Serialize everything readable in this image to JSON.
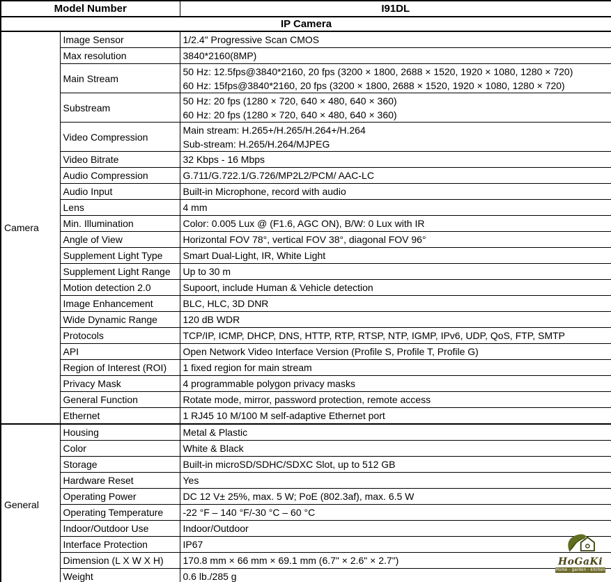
{
  "header": {
    "model_label": "Model Number",
    "model_value": "I91DL",
    "category": "IP Camera"
  },
  "sections": [
    {
      "group": "Camera",
      "rows": [
        {
          "label": "Image Sensor",
          "lines": [
            "1/2.4\" Progressive Scan CMOS"
          ]
        },
        {
          "label": "Max resolution",
          "lines": [
            "3840*2160(8MP)"
          ]
        },
        {
          "label": "Main Stream",
          "lines": [
            "50 Hz: 12.5fps@3840*2160, 20 fps (3200 × 1800, 2688 × 1520, 1920 × 1080, 1280 × 720)",
            "60 Hz: 15fps@3840*2160, 20 fps (3200 × 1800, 2688 × 1520, 1920 × 1080, 1280 × 720)"
          ]
        },
        {
          "label": "Substream",
          "lines": [
            "50 Hz: 20 fps (1280 × 720, 640 × 480, 640 × 360)",
            "60 Hz: 20 fps (1280 × 720, 640 × 480, 640 × 360)"
          ]
        },
        {
          "label": "Video Compression",
          "lines": [
            "Main stream: H.265+/H.265/H.264+/H.264",
            "Sub-stream: H.265/H.264/MJPEG"
          ]
        },
        {
          "label": "Video Bitrate",
          "lines": [
            "32 Kbps - 16 Mbps"
          ]
        },
        {
          "label": "Audio Compression",
          "lines": [
            "G.711/G.722.1/G.726/MP2L2/PCM/ AAC-LC"
          ]
        },
        {
          "label": "Audio Input",
          "lines": [
            "Built-in Microphone, record with audio"
          ]
        },
        {
          "label": "Lens",
          "lines": [
            "4 mm"
          ]
        },
        {
          "label": "Min. Illumination",
          "lines": [
            "Color: 0.005 Lux @ (F1.6, AGC ON), B/W: 0 Lux with IR"
          ]
        },
        {
          "label": "Angle of View",
          "lines": [
            "Horizontal FOV 78°, vertical FOV 38°, diagonal FOV 96°"
          ]
        },
        {
          "label": "Supplement Light Type",
          "lines": [
            "Smart Dual-Light, IR, White Light"
          ]
        },
        {
          "label": "Supplement Light Range",
          "lines": [
            "Up to 30 m"
          ]
        },
        {
          "label": "Motion detection 2.0",
          "lines": [
            "Supoort, include Human & Vehicle detection"
          ]
        },
        {
          "label": "Image Enhancement",
          "lines": [
            "BLC, HLC, 3D DNR"
          ]
        },
        {
          "label": "Wide Dynamic Range",
          "lines": [
            "120 dB WDR"
          ]
        },
        {
          "label": "Protocols",
          "lines": [
            "TCP/IP, ICMP, DHCP, DNS, HTTP, RTP, RTSP, NTP, IGMP, IPv6, UDP, QoS, FTP, SMTP"
          ]
        },
        {
          "label": "API",
          "lines": [
            "Open Network Video Interface Version (Profile S, Profile T, Profile G)"
          ]
        },
        {
          "label": "Region of Interest (ROI)",
          "lines": [
            "1 fixed region for main stream"
          ]
        },
        {
          "label": "Privacy Mask",
          "lines": [
            "4 programmable polygon privacy masks"
          ]
        },
        {
          "label": "General Function",
          "lines": [
            "Rotate mode, mirror, password protection, remote access"
          ]
        },
        {
          "label": "Ethernet",
          "lines": [
            "1 RJ45 10 M/100 M self-adaptive Ethernet port"
          ]
        }
      ]
    },
    {
      "group": "General",
      "rows": [
        {
          "label": "Housing",
          "lines": [
            "Metal & Plastic"
          ]
        },
        {
          "label": "Color",
          "lines": [
            "White & Black"
          ]
        },
        {
          "label": "Storage",
          "lines": [
            "Built-in microSD/SDHC/SDXC Slot, up to 512 GB"
          ]
        },
        {
          "label": "Hardware Reset",
          "lines": [
            "Yes"
          ]
        },
        {
          "label": "Operating Power",
          "lines": [
            "DC 12 V± 25%, max. 5 W; PoE (802.3af), max. 6.5 W"
          ]
        },
        {
          "label": "Operating Temperature",
          "lines": [
            "-22 °F – 140 °F/-30 °C – 60 °C"
          ]
        },
        {
          "label": "Indoor/Outdoor Use",
          "lines": [
            "Indoor/Outdoor"
          ]
        },
        {
          "label": "Interface Protection",
          "lines": [
            "IP67"
          ]
        },
        {
          "label": "Dimension (L X W X H)",
          "lines": [
            "170.8 mm × 66 mm × 69.1 mm (6.7\" × 2.6\" × 2.7\")"
          ]
        },
        {
          "label": "Weight",
          "lines": [
            "0.6 lb./285 g"
          ]
        }
      ]
    }
  ],
  "logo": {
    "name": "HoGaKi",
    "tagline": "Home - garden - kitchen",
    "colors": {
      "wordmark": "#4a461a",
      "banner": "#6e6a2c",
      "leaf": "#5f6f1f"
    }
  }
}
